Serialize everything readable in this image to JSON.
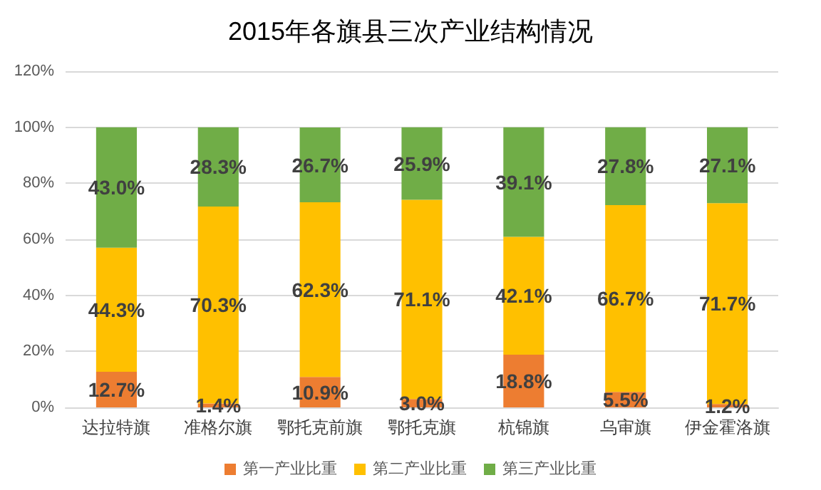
{
  "chart_data": {
    "type": "bar",
    "title": "2015年各旗县三次产业结构情况",
    "stacked": true,
    "categories": [
      "达拉特旗",
      "准格尔旗",
      "鄂托克前旗",
      "鄂托克旗",
      "杭锦旗",
      "乌审旗",
      "伊金霍洛旗"
    ],
    "series": [
      {
        "name": "第一产业比重",
        "color": "#ed7d31",
        "values": [
          12.7,
          1.4,
          10.9,
          3.0,
          18.8,
          5.5,
          1.2
        ],
        "value_labels": [
          "12.7%",
          "1.4%",
          "10.9%",
          "3.0%",
          "18.8%",
          "5.5%",
          "1.2%"
        ]
      },
      {
        "name": "第二产业比重",
        "color": "#ffc000",
        "values": [
          44.3,
          70.3,
          62.3,
          71.1,
          42.1,
          66.7,
          71.7
        ],
        "value_labels": [
          "44.3%",
          "70.3%",
          "62.3%",
          "71.1%",
          "42.1%",
          "66.7%",
          "71.7%"
        ]
      },
      {
        "name": "第三产业比重",
        "color": "#70ad47",
        "values": [
          43.0,
          28.3,
          26.7,
          25.9,
          39.1,
          27.8,
          27.1
        ],
        "value_labels": [
          "43.0%",
          "28.3%",
          "26.7%",
          "25.9%",
          "39.1%",
          "27.8%",
          "27.1%"
        ]
      }
    ],
    "ylim": [
      0,
      120
    ],
    "yticks": [
      {
        "value": 0,
        "label": "0%"
      },
      {
        "value": 20,
        "label": "20%"
      },
      {
        "value": 40,
        "label": "40%"
      },
      {
        "value": 60,
        "label": "60%"
      },
      {
        "value": 80,
        "label": "80%"
      },
      {
        "value": 100,
        "label": "100%"
      },
      {
        "value": 120,
        "label": "120%"
      }
    ],
    "grid": "y",
    "legend": "bottom"
  }
}
